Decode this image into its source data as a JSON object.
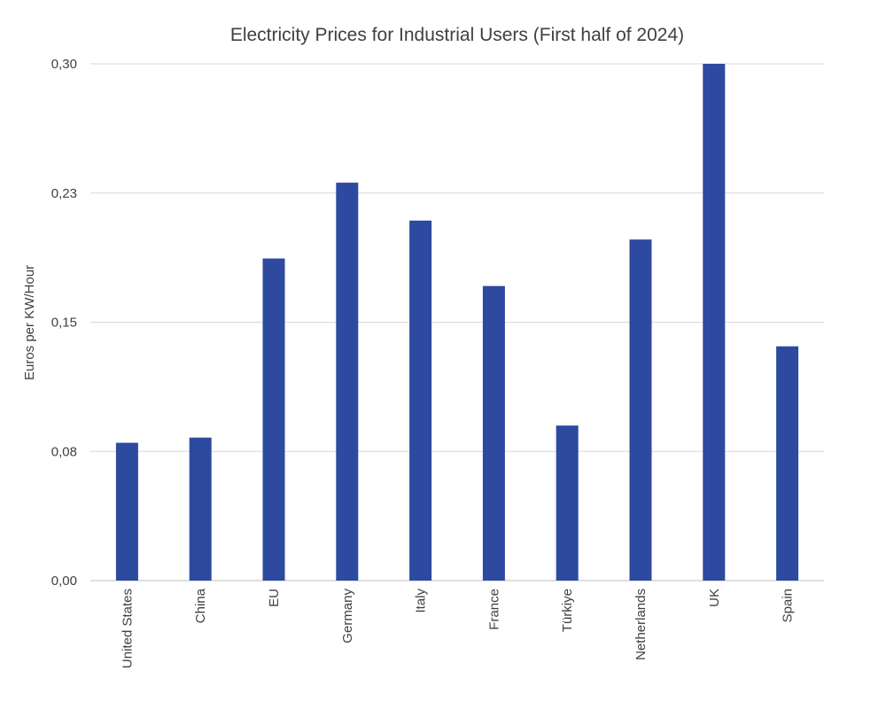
{
  "chart_data": {
    "type": "bar",
    "title": "Electricity Prices for Industrial Users (First half of 2024)",
    "xlabel": "",
    "ylabel": "Euros per KW/Hour",
    "ylim": [
      0,
      0.3
    ],
    "yticks": [
      0,
      0.075,
      0.15,
      0.225,
      0.3
    ],
    "ytick_labels": [
      "0,00",
      "0,08",
      "0,15",
      "0,23",
      "0,30"
    ],
    "grid": true,
    "legend": "none",
    "color": "#2e49a0",
    "categories": [
      "United States",
      "China",
      "EU",
      "Germany",
      "Italy",
      "France",
      "Türkiye",
      "Netherlands",
      "UK",
      "Spain"
    ],
    "values": [
      0.08,
      0.083,
      0.187,
      0.231,
      0.209,
      0.171,
      0.09,
      0.198,
      0.3,
      0.136
    ]
  }
}
